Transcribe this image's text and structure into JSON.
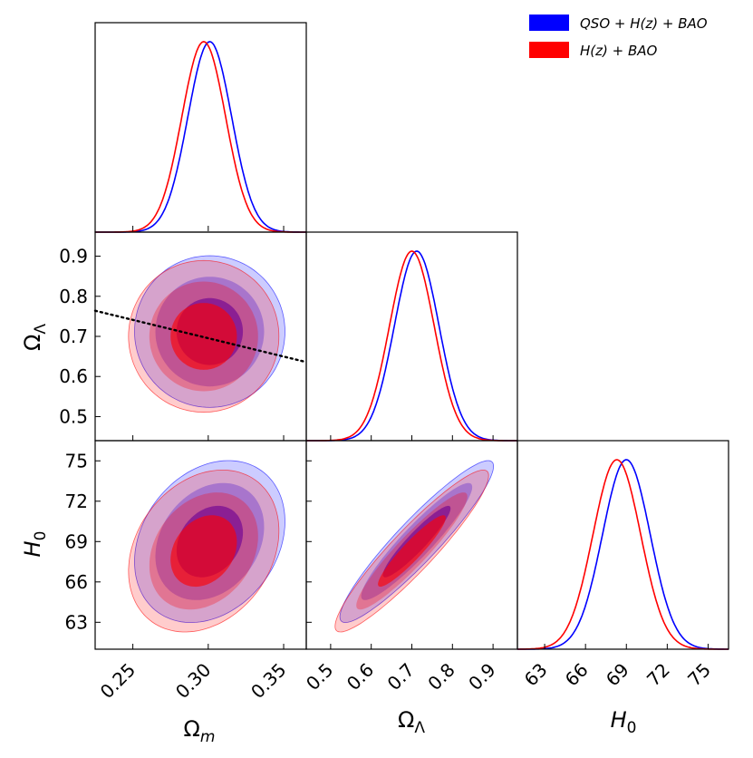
{
  "chart_data": {
    "type": "corner",
    "title": "",
    "parameters": [
      {
        "id": "om",
        "label": "Ωm",
        "ticks": [
          "0.25",
          "0.30",
          "0.35"
        ],
        "tick_values": [
          0.25,
          0.3,
          0.35
        ],
        "range": [
          0.225,
          0.365
        ]
      },
      {
        "id": "ol",
        "label": "ΩΛ",
        "ticks": [
          "0.5",
          "0.6",
          "0.7",
          "0.8",
          "0.9"
        ],
        "tick_values": [
          0.5,
          0.6,
          0.7,
          0.8,
          0.9
        ],
        "range": [
          0.44,
          0.96
        ]
      },
      {
        "id": "h0",
        "label": "H0",
        "ticks": [
          "63",
          "66",
          "69",
          "72",
          "75"
        ],
        "tick_values": [
          63,
          66,
          69,
          72,
          75
        ],
        "range": [
          61.0,
          76.5
        ]
      }
    ],
    "series": [
      {
        "name": "QSO + H(z) + BAO",
        "color": "#0000ff",
        "marginals": {
          "om": {
            "mean": 0.301,
            "sigma": 0.0145
          },
          "ol": {
            "mean": 0.712,
            "sigma": 0.055
          },
          "h0": {
            "mean": 69.0,
            "sigma": 1.75
          }
        },
        "correlations": {
          "om_ol": 0.0,
          "om_h0": 0.25,
          "ol_h0": 0.93
        }
      },
      {
        "name": "H(z) + BAO",
        "color": "#ff0000",
        "marginals": {
          "om": {
            "mean": 0.297,
            "sigma": 0.0145
          },
          "ol": {
            "mean": 0.7,
            "sigma": 0.055
          },
          "h0": {
            "mean": 68.3,
            "sigma": 1.75
          }
        },
        "correlations": {
          "om_ol": 0.0,
          "om_h0": 0.25,
          "ol_h0": 0.93
        }
      }
    ],
    "reference_line": {
      "panel": "om_vs_ol",
      "style": "dotted",
      "color": "#000000",
      "points": [
        [
          0.225,
          0.764
        ],
        [
          0.365,
          0.636
        ]
      ]
    },
    "legend_position": "top-right",
    "legend": [
      {
        "label": "QSO + H(z) + BAO",
        "color": "#0000ff"
      },
      {
        "label": "H(z) + BAO",
        "color": "#ff0000"
      }
    ]
  }
}
